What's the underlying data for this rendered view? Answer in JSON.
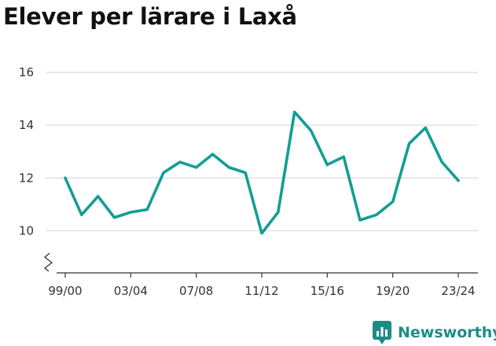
{
  "title": "Elever per lärare i Laxå",
  "brand": {
    "name": "Newsworthy",
    "icon": "newsworthy-logo-icon",
    "color": "#1d8c86"
  },
  "chart_data": {
    "type": "line",
    "title": "Elever per lärare i Laxå",
    "xlabel": "",
    "ylabel": "",
    "x": [
      "99/00",
      "00/01",
      "01/02",
      "02/03",
      "03/04",
      "04/05",
      "05/06",
      "06/07",
      "07/08",
      "08/09",
      "09/10",
      "10/11",
      "11/12",
      "12/13",
      "13/14",
      "14/15",
      "15/16",
      "16/17",
      "17/18",
      "18/19",
      "19/20",
      "20/21",
      "21/22",
      "22/23",
      "23/24"
    ],
    "x_tick_labels": [
      "99/00",
      "03/04",
      "07/08",
      "11/12",
      "15/16",
      "19/20",
      "23/24"
    ],
    "series": [
      {
        "values": [
          12.0,
          10.6,
          11.3,
          10.5,
          10.7,
          10.8,
          12.2,
          12.6,
          12.4,
          12.9,
          12.4,
          12.2,
          9.9,
          10.7,
          14.5,
          13.8,
          12.5,
          12.8,
          10.4,
          10.6,
          11.1,
          13.3,
          13.9,
          12.6,
          11.9
        ],
        "color": "#139e94"
      }
    ],
    "y_ticks": [
      10,
      12,
      14,
      16
    ],
    "ylim": [
      8.4,
      16.6
    ],
    "axis_break": true,
    "grid": true,
    "legend": "none"
  }
}
